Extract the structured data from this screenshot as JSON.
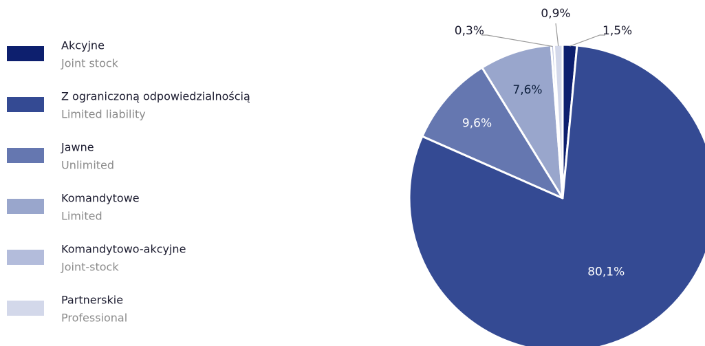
{
  "chart_data": {
    "type": "pie",
    "categories": [
      "Akcyjne",
      "Z ograniczoną odpowiedzialnością",
      "Jawne",
      "Komandytowe",
      "Komandytowo-akcyjne",
      "Partnerskie"
    ],
    "category_translations": [
      "Joint stock",
      "Limited liability",
      "Unlimited",
      "Limited",
      "Joint-stock",
      "Professional"
    ],
    "values": [
      1.5,
      80.1,
      9.6,
      7.6,
      0.3,
      0.9
    ],
    "value_labels": [
      "1,5%",
      "80,1%",
      "9,6%",
      "7,6%",
      "0,3%",
      "0,9%"
    ],
    "colors": [
      "#0d1f6e",
      "#344a93",
      "#6577b0",
      "#99a6cc",
      "#b3bcdb",
      "#d3d8ea"
    ],
    "legend": "left"
  }
}
